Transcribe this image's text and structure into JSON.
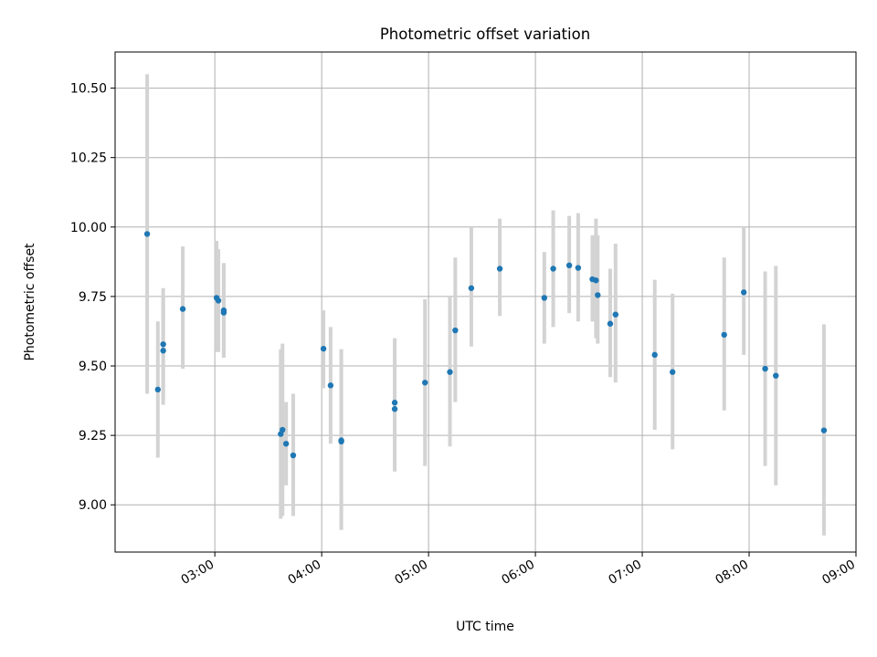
{
  "chart_data": {
    "type": "scatter",
    "title": "Photometric offset variation",
    "xlabel": "UTC time",
    "ylabel": "Photometric offset",
    "grid": true,
    "x_tick_labels": [
      "03:00",
      "04:00",
      "05:00",
      "06:00",
      "07:00",
      "08:00",
      "09:00"
    ],
    "y_tick_labels": [
      "9.00",
      "9.25",
      "9.50",
      "9.75",
      "10.00",
      "10.25",
      "10.50"
    ],
    "xlim": [
      "02:04",
      "09:00"
    ],
    "ylim": [
      8.83,
      10.63
    ],
    "colors": {
      "point": "#1f77b4",
      "errorbar": "#d3d3d3"
    },
    "points": [
      {
        "x": "02:22",
        "y": 9.975,
        "lo": 9.4,
        "hi": 10.55
      },
      {
        "x": "02:28",
        "y": 9.415,
        "lo": 9.17,
        "hi": 9.66
      },
      {
        "x": "02:31",
        "y": 9.555,
        "lo": 9.36,
        "hi": 9.75
      },
      {
        "x": "02:31",
        "y": 9.578,
        "lo": 9.38,
        "hi": 9.78
      },
      {
        "x": "02:42",
        "y": 9.705,
        "lo": 9.49,
        "hi": 9.93
      },
      {
        "x": "03:01",
        "y": 9.745,
        "lo": 9.55,
        "hi": 9.95
      },
      {
        "x": "03:02",
        "y": 9.735,
        "lo": 9.55,
        "hi": 9.92
      },
      {
        "x": "03:05",
        "y": 9.7,
        "lo": 9.53,
        "hi": 9.87
      },
      {
        "x": "03:05",
        "y": 9.692,
        "lo": 9.53,
        "hi": 9.87
      },
      {
        "x": "03:37",
        "y": 9.255,
        "lo": 8.95,
        "hi": 9.56
      },
      {
        "x": "03:38",
        "y": 9.27,
        "lo": 8.96,
        "hi": 9.58
      },
      {
        "x": "03:40",
        "y": 9.22,
        "lo": 9.07,
        "hi": 9.37
      },
      {
        "x": "03:44",
        "y": 9.178,
        "lo": 8.96,
        "hi": 9.4
      },
      {
        "x": "04:01",
        "y": 9.562,
        "lo": 9.42,
        "hi": 9.7
      },
      {
        "x": "04:05",
        "y": 9.43,
        "lo": 9.22,
        "hi": 9.64
      },
      {
        "x": "04:11",
        "y": 9.228,
        "lo": 8.91,
        "hi": 9.56
      },
      {
        "x": "04:11",
        "y": 9.232,
        "lo": 8.91,
        "hi": 9.56
      },
      {
        "x": "04:41",
        "y": 9.345,
        "lo": 9.12,
        "hi": 9.58
      },
      {
        "x": "04:41",
        "y": 9.368,
        "lo": 9.14,
        "hi": 9.6
      },
      {
        "x": "04:58",
        "y": 9.44,
        "lo": 9.14,
        "hi": 9.74
      },
      {
        "x": "05:12",
        "y": 9.478,
        "lo": 9.21,
        "hi": 9.75
      },
      {
        "x": "05:15",
        "y": 9.628,
        "lo": 9.37,
        "hi": 9.89
      },
      {
        "x": "05:24",
        "y": 9.78,
        "lo": 9.57,
        "hi": 10.0
      },
      {
        "x": "05:40",
        "y": 9.85,
        "lo": 9.68,
        "hi": 10.03
      },
      {
        "x": "06:05",
        "y": 9.745,
        "lo": 9.58,
        "hi": 9.91
      },
      {
        "x": "06:10",
        "y": 9.85,
        "lo": 9.64,
        "hi": 10.06
      },
      {
        "x": "06:19",
        "y": 9.862,
        "lo": 9.69,
        "hi": 10.04
      },
      {
        "x": "06:24",
        "y": 9.853,
        "lo": 9.66,
        "hi": 10.05
      },
      {
        "x": "06:32",
        "y": 9.812,
        "lo": 9.66,
        "hi": 9.97
      },
      {
        "x": "06:34",
        "y": 9.808,
        "lo": 9.6,
        "hi": 10.03
      },
      {
        "x": "06:35",
        "y": 9.755,
        "lo": 9.58,
        "hi": 9.97
      },
      {
        "x": "06:42",
        "y": 9.652,
        "lo": 9.46,
        "hi": 9.85
      },
      {
        "x": "06:45",
        "y": 9.685,
        "lo": 9.44,
        "hi": 9.94
      },
      {
        "x": "07:07",
        "y": 9.54,
        "lo": 9.27,
        "hi": 9.81
      },
      {
        "x": "07:17",
        "y": 9.478,
        "lo": 9.2,
        "hi": 9.76
      },
      {
        "x": "07:46",
        "y": 9.612,
        "lo": 9.34,
        "hi": 9.89
      },
      {
        "x": "07:57",
        "y": 9.765,
        "lo": 9.54,
        "hi": 10.0
      },
      {
        "x": "08:09",
        "y": 9.49,
        "lo": 9.14,
        "hi": 9.84
      },
      {
        "x": "08:15",
        "y": 9.465,
        "lo": 9.07,
        "hi": 9.86
      },
      {
        "x": "08:42",
        "y": 9.268,
        "lo": 8.89,
        "hi": 9.65
      }
    ]
  }
}
